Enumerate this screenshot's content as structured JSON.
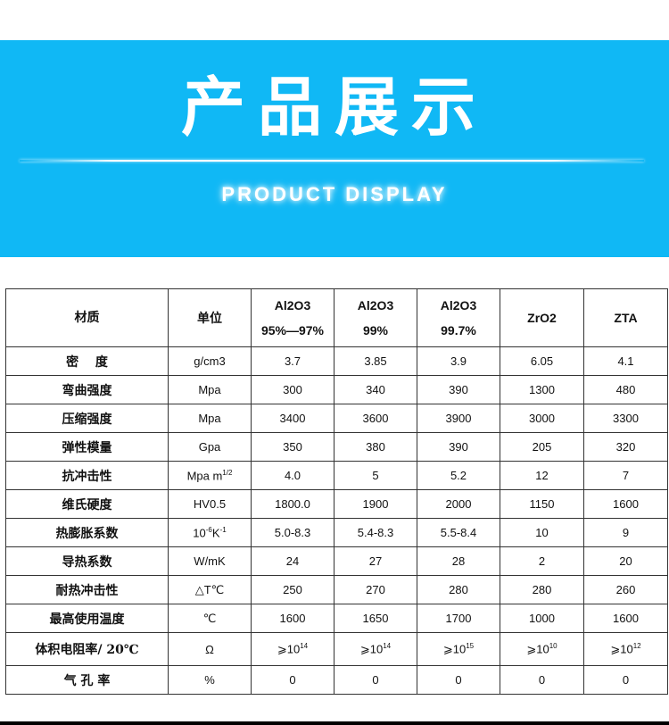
{
  "banner": {
    "title": "产品展示",
    "subtitle": "PRODUCT DISPLAY",
    "color": "#10b8f5"
  },
  "table": {
    "headers": [
      {
        "lines": [
          "材质"
        ]
      },
      {
        "lines": [
          "单位"
        ]
      },
      {
        "lines": [
          "Al2O3",
          "95%—97%"
        ]
      },
      {
        "lines": [
          "Al2O3",
          "99%"
        ]
      },
      {
        "lines": [
          "Al2O3",
          "99.7%"
        ]
      },
      {
        "lines": [
          "ZrO2"
        ]
      },
      {
        "lines": [
          "ZTA"
        ]
      }
    ],
    "rows": [
      [
        {
          "t": "密　 度"
        },
        {
          "t": "g/cm3"
        },
        {
          "t": "3.7"
        },
        {
          "t": "3.85"
        },
        {
          "t": "3.9"
        },
        {
          "t": "6.05"
        },
        {
          "t": "4.1"
        }
      ],
      [
        {
          "t": "弯曲强度"
        },
        {
          "t": "Mpa"
        },
        {
          "t": "300"
        },
        {
          "t": "340"
        },
        {
          "t": "390"
        },
        {
          "t": "1300"
        },
        {
          "t": "480"
        }
      ],
      [
        {
          "t": "压缩强度"
        },
        {
          "t": "Mpa"
        },
        {
          "t": "3400"
        },
        {
          "t": "3600"
        },
        {
          "t": "3900"
        },
        {
          "t": "3000"
        },
        {
          "t": "3300"
        }
      ],
      [
        {
          "t": "弹性模量"
        },
        {
          "t": "Gpa"
        },
        {
          "t": "350"
        },
        {
          "t": "380"
        },
        {
          "t": "390"
        },
        {
          "t": "205"
        },
        {
          "t": "320"
        }
      ],
      [
        {
          "t": "抗冲击性"
        },
        {
          "t": "Mpa m",
          "sup": "1/2"
        },
        {
          "t": "4.0"
        },
        {
          "t": "5"
        },
        {
          "t": "5.2"
        },
        {
          "t": "12"
        },
        {
          "t": "7"
        }
      ],
      [
        {
          "t": "维氏硬度"
        },
        {
          "t": "HV0.5"
        },
        {
          "t": "1800.0"
        },
        {
          "t": "1900"
        },
        {
          "t": "2000"
        },
        {
          "t": "1150"
        },
        {
          "t": "1600"
        }
      ],
      [
        {
          "t": "热膨胀系数"
        },
        {
          "t": "10",
          "sup": "-6",
          "t2": "K",
          "sup2": "-1"
        },
        {
          "t": "5.0-8.3"
        },
        {
          "t": "5.4-8.3"
        },
        {
          "t": "5.5-8.4"
        },
        {
          "t": "10"
        },
        {
          "t": "9"
        }
      ],
      [
        {
          "t": "导热系数"
        },
        {
          "t": "W/mK"
        },
        {
          "t": "24"
        },
        {
          "t": "27"
        },
        {
          "t": "28"
        },
        {
          "t": "2"
        },
        {
          "t": "20"
        }
      ],
      [
        {
          "t": "耐热冲击性"
        },
        {
          "t": "△T℃"
        },
        {
          "t": "250"
        },
        {
          "t": "270"
        },
        {
          "t": "280"
        },
        {
          "t": "280"
        },
        {
          "t": "260"
        }
      ],
      [
        {
          "t": "最高使用温度"
        },
        {
          "t": "℃"
        },
        {
          "t": "1600"
        },
        {
          "t": "1650"
        },
        {
          "t": "1700"
        },
        {
          "t": "1000"
        },
        {
          "t": "1600"
        }
      ],
      [
        {
          "t": "体积电阻率/ 20℃"
        },
        {
          "t": "Ω"
        },
        {
          "t": "⩾10",
          "sup": "14"
        },
        {
          "t": "⩾10",
          "sup": "14"
        },
        {
          "t": "⩾10",
          "sup": "15"
        },
        {
          "t": "⩾10",
          "sup": "10"
        },
        {
          "t": "⩾10",
          "sup": "12"
        }
      ],
      [
        {
          "t": "气 孔 率"
        },
        {
          "t": "%"
        },
        {
          "t": "0"
        },
        {
          "t": "0"
        },
        {
          "t": "0"
        },
        {
          "t": "0"
        },
        {
          "t": "0"
        }
      ]
    ]
  }
}
